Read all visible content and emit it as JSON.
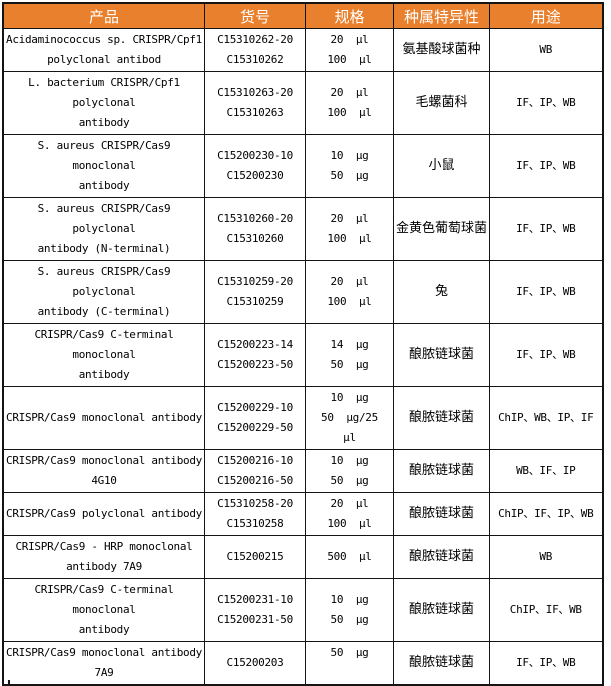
{
  "colors": {
    "header_bg": "#E9802D",
    "header_text": "#FFFFFF",
    "border": "#141414"
  },
  "table": {
    "columns": [
      "产品",
      "货号",
      "规格",
      "种属特异性",
      "用途"
    ],
    "rows": [
      {
        "product_lines": [
          "Acidaminococcus sp. CRISPR/Cpf1",
          "polyclonal antibod"
        ],
        "catalog_lines": [
          "C15310262-20",
          "C15310262"
        ],
        "spec_lines": [
          "20  μl",
          "100  μl"
        ],
        "species": "氨基酸球菌种",
        "usage": "WB"
      },
      {
        "product_lines": [
          "L. bacterium CRISPR/Cpf1",
          "polyclonal",
          "antibody"
        ],
        "catalog_lines": [
          "C15310263-20",
          "C15310263"
        ],
        "spec_lines": [
          "20  μl",
          "100  μl"
        ],
        "species": "毛螺菌科",
        "usage": "IF、IP、WB"
      },
      {
        "product_lines": [
          "S. aureus CRISPR/Cas9",
          "monoclonal",
          "antibody"
        ],
        "catalog_lines": [
          "C15200230-10",
          "C15200230"
        ],
        "spec_lines": [
          "10  μg",
          "50  μg"
        ],
        "species": "小鼠",
        "usage": "IF、IP、WB"
      },
      {
        "product_lines": [
          "S. aureus CRISPR/Cas9",
          "polyclonal",
          "antibody (N-terminal)"
        ],
        "catalog_lines": [
          "C15310260-20",
          "C15310260"
        ],
        "spec_lines": [
          "20  μl",
          "100  μl"
        ],
        "species": "金黄色葡萄球菌",
        "usage": "IF、IP、WB"
      },
      {
        "product_lines": [
          "S. aureus CRISPR/Cas9",
          "polyclonal",
          "antibody (C-terminal)"
        ],
        "catalog_lines": [
          "C15310259-20",
          "C15310259"
        ],
        "spec_lines": [
          "20  μl",
          "100  μl"
        ],
        "species": "兔",
        "usage": "IF、IP、WB"
      },
      {
        "product_lines": [
          "CRISPR/Cas9 C-terminal",
          "monoclonal",
          "antibody"
        ],
        "catalog_lines": [
          "C15200223-14",
          "C15200223-50"
        ],
        "spec_lines": [
          "14  μg",
          "50  μg"
        ],
        "species": "酿脓链球菌",
        "usage": "IF、IP、WB"
      },
      {
        "product_lines": [
          "CRISPR/Cas9 monoclonal antibody"
        ],
        "catalog_lines": [
          "C15200229-10",
          "C15200229-50"
        ],
        "spec_lines": [
          "10  μg",
          "50  μg/25",
          "μl"
        ],
        "species": "酿脓链球菌",
        "usage": "ChIP、WB、IP、IF"
      },
      {
        "product_lines": [
          "CRISPR/Cas9 monoclonal antibody",
          "4G10"
        ],
        "catalog_lines": [
          "C15200216-10",
          "C15200216-50"
        ],
        "spec_lines": [
          "10  μg",
          "50  μg"
        ],
        "species": "酿脓链球菌",
        "usage": "WB、IF、IP"
      },
      {
        "product_lines": [
          "CRISPR/Cas9 polyclonal antibody"
        ],
        "catalog_lines": [
          "C15310258-20",
          "C15310258"
        ],
        "spec_lines": [
          "20  μl",
          "100  μl"
        ],
        "species": "酿脓链球菌",
        "usage": "ChIP、IF、IP、WB"
      },
      {
        "product_lines": [
          "CRISPR/Cas9 - HRP monoclonal",
          "antibody 7A9"
        ],
        "catalog_lines": [
          "C15200215"
        ],
        "spec_lines": [
          "500  μl"
        ],
        "species": "酿脓链球菌",
        "usage": "WB"
      },
      {
        "product_lines": [
          "CRISPR/Cas9 C-terminal",
          "monoclonal",
          "antibody"
        ],
        "catalog_lines": [
          "C15200231-10",
          "C15200231-50"
        ],
        "spec_lines": [
          "10  μg",
          "50  μg"
        ],
        "species": "酿脓链球菌",
        "usage": "ChIP、IF、WB"
      },
      {
        "product_lines": [
          "CRISPR/Cas9 monoclonal antibody",
          "7A9"
        ],
        "catalog_lines": [
          "C15200203"
        ],
        "spec_lines": [
          "50  μg",
          ""
        ],
        "species": "酿脓链球菌",
        "usage": "IF、IP、WB"
      }
    ]
  }
}
